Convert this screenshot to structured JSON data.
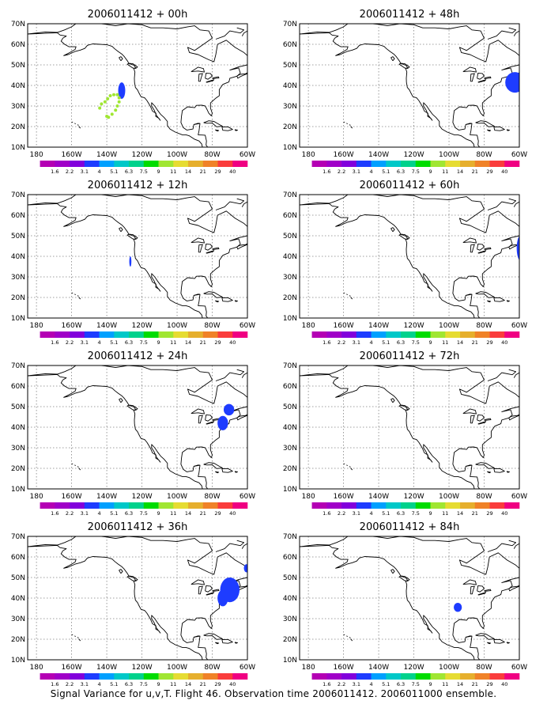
{
  "panels": [
    {
      "title": "2006011412 + 00h",
      "blobs": [
        {
          "type": "ellipse",
          "lon": -131.5,
          "lat": 37.5,
          "rlon": 2.0,
          "rlat": 4.0,
          "c": 2
        },
        {
          "type": "dots",
          "c": 7,
          "pts": [
            [
              -144,
              29
            ],
            [
              -143,
              31
            ],
            [
              -141,
              32
            ],
            [
              -139.5,
              33.5
            ],
            [
              -138,
              35
            ],
            [
              -136,
              35.5
            ],
            [
              -134,
              35.5
            ],
            [
              -133,
              34
            ],
            [
              -133,
              32
            ],
            [
              -134,
              30
            ],
            [
              -135,
              28
            ],
            [
              -137,
              26
            ],
            [
              -139,
              24.5
            ],
            [
              -140,
              25
            ]
          ]
        }
      ]
    },
    {
      "title": "2006011412 + 48h",
      "blobs": [
        {
          "type": "ellipse",
          "lon": -62.5,
          "lat": 41.5,
          "rlon": 5.5,
          "rlat": 5.0,
          "c": 2
        },
        {
          "type": "ellipse",
          "lon": -56,
          "lat": 44,
          "rlon": 4.0,
          "rlat": 3.5,
          "c": 2
        }
      ]
    },
    {
      "title": "2006011412 + 12h",
      "blobs": [
        {
          "type": "ellipse",
          "lon": -126.6,
          "lat": 37.5,
          "rlon": 0.6,
          "rlat": 2.5,
          "c": 2
        }
      ]
    },
    {
      "title": "2006011412 + 60h",
      "blobs": [
        {
          "type": "ellipse",
          "lon": -59,
          "lat": 44,
          "rlon": 2.5,
          "rlat": 6.5,
          "c": 2
        }
      ]
    },
    {
      "title": "2006011412 + 24h",
      "blobs": [
        {
          "type": "ellipse",
          "lon": -70.5,
          "lat": 48.5,
          "rlon": 3.0,
          "rlat": 2.8,
          "c": 2
        },
        {
          "type": "ellipse",
          "lon": -74,
          "lat": 42,
          "rlon": 3.0,
          "rlat": 3.5,
          "c": 2
        }
      ]
    },
    {
      "title": "2006011412 + 72h",
      "blobs": []
    },
    {
      "title": "2006011412 + 36h",
      "blobs": [
        {
          "type": "ellipse",
          "lon": -70,
          "lat": 44,
          "rlon": 5.5,
          "rlat": 6.0,
          "c": 2
        },
        {
          "type": "ellipse",
          "lon": -74,
          "lat": 40,
          "rlon": 3.0,
          "rlat": 4.0,
          "c": 2
        },
        {
          "type": "ellipse",
          "lon": -60.5,
          "lat": 54.5,
          "rlon": 1.5,
          "rlat": 2.0,
          "c": 2
        }
      ]
    },
    {
      "title": "2006011412 + 84h",
      "blobs": [
        {
          "type": "ellipse",
          "lon": -95,
          "lat": 35.5,
          "rlon": 2.3,
          "rlat": 2.2,
          "c": 2
        }
      ]
    }
  ],
  "axes": {
    "lon_ticks": [
      "180",
      "160W",
      "140W",
      "120W",
      "100W",
      "80W",
      "60W"
    ],
    "lat_ticks": [
      "10N",
      "20N",
      "30N",
      "40N",
      "50N",
      "60N",
      "70N"
    ]
  },
  "colorbar": {
    "labels": [
      "1.6",
      "2.2",
      "3.1",
      "4",
      "5.1",
      "6.3",
      "7.5",
      "9",
      "11",
      "14",
      "21",
      "29",
      "40"
    ],
    "colors": [
      "#a000c8",
      "#8200dc",
      "#1e3cff",
      "#00a0ff",
      "#00c8c8",
      "#00d28c",
      "#00dc00",
      "#a0e632",
      "#e6dc32",
      "#e6af2d",
      "#f08228",
      "#fa3c3c",
      "#f00082"
    ]
  },
  "footer": "Signal Variance for u,v,T. Flight 46. Observation time 2006011412. 2006011000 ensemble."
}
